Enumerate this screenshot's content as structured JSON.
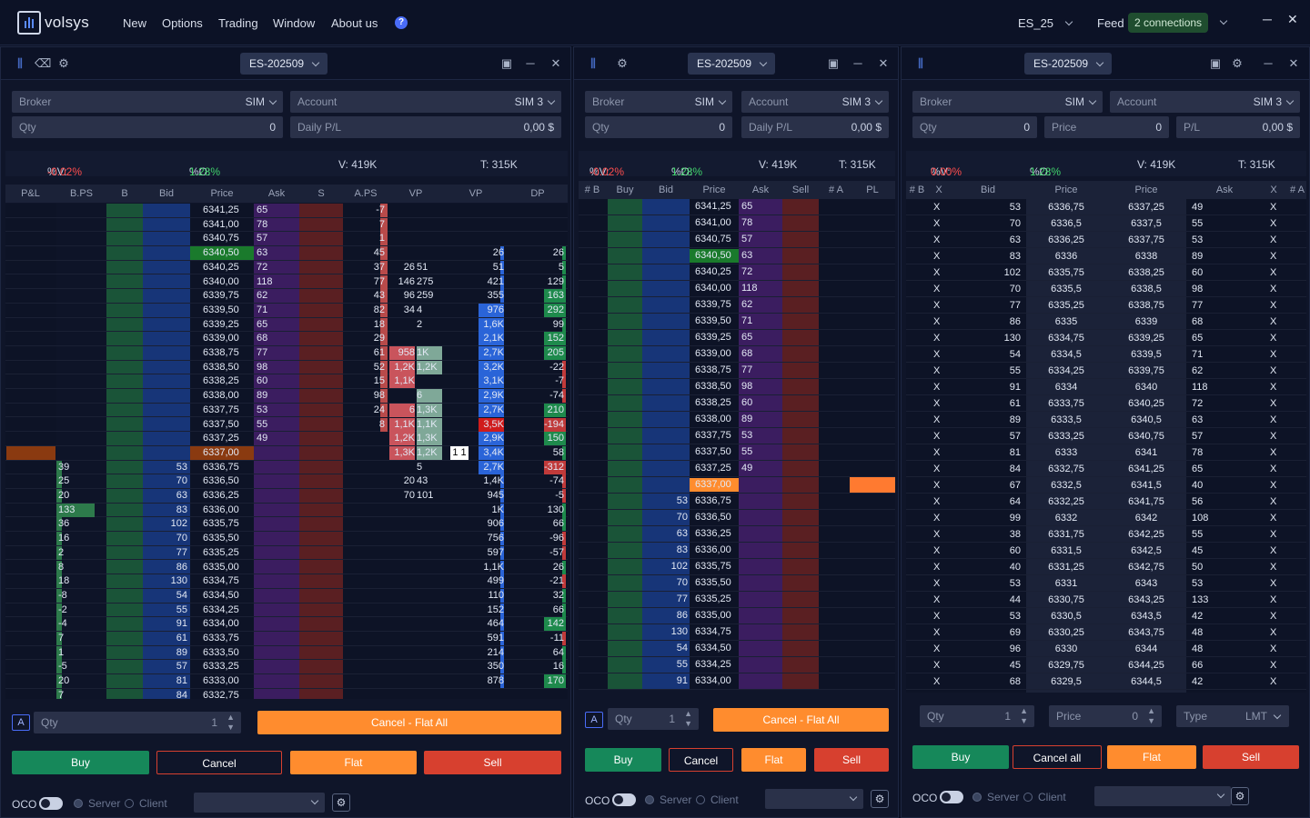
{
  "app": {
    "brand": "volsys",
    "menu": [
      "New",
      "Options",
      "Trading",
      "Window",
      "About us"
    ],
    "account": "ES_25",
    "feed_label": "Feed",
    "connections": "2 connections"
  },
  "colors": {
    "buy": "#16885a",
    "sell": "#d7402f",
    "flat": "#ff8c2e",
    "cancel_border": "#d7402f",
    "bid_col": "#1e3f8a",
    "ask_col": "#3f1f63",
    "pl_pos": "#40d36b",
    "pl_neg": "#ff4d4d"
  },
  "panels": [
    {
      "instrument": "ES-202509",
      "broker_label": "Broker",
      "broker": "SIM",
      "account_label": "Account",
      "account": "SIM 3",
      "qty_label": "Qty",
      "qty": "0",
      "pnl_label": "Daily P/L",
      "pnl": "0,00 $",
      "stats": {
        "v_label": "%V:",
        "v": "-0.02%",
        "o_label": "%O:",
        "o": "1.28%",
        "vol": "V: 419K",
        "trades": "T: 315K"
      },
      "headers": [
        "P&L",
        "B.PS",
        "B",
        "Bid",
        "Price",
        "Ask",
        "S",
        "A.PS",
        "VP",
        "VP",
        "DP"
      ],
      "prices": [
        "6341,25",
        "6341,00",
        "6340,75",
        "6340,50",
        "6340,25",
        "6340,00",
        "6339,75",
        "6339,50",
        "6339,25",
        "6339,00",
        "6338,75",
        "6338,50",
        "6338,25",
        "6338,00",
        "6337,75",
        "6337,50",
        "6337,25",
        "6337,00",
        "6336,75",
        "6336,50",
        "6336,25",
        "6336,00",
        "6335,75",
        "6335,50",
        "6335,25",
        "6335,00",
        "6334,75",
        "6334,50",
        "6334,25",
        "6334,00",
        "6333,75",
        "6333,50",
        "6333,25",
        "6333,00",
        "6332,75"
      ],
      "asks": [
        "65",
        "78",
        "57",
        "63",
        "72",
        "118",
        "62",
        "71",
        "65",
        "68",
        "77",
        "98",
        "60",
        "89",
        "53",
        "55",
        "49"
      ],
      "bids": [
        "53",
        "70",
        "63",
        "83",
        "102",
        "70",
        "77",
        "86",
        "130",
        "54",
        "55",
        "91",
        "61",
        "89",
        "57",
        "81",
        "84"
      ],
      "pnl_vals": [
        "39",
        "25",
        "20",
        "133",
        "36",
        "16",
        "2",
        "8",
        "18",
        "-8",
        "-2",
        "-4",
        "7",
        "1",
        "-5",
        "20",
        "7"
      ],
      "aps": [
        "-7",
        "7",
        "1",
        "45",
        "37",
        "77",
        "43",
        "82",
        "18",
        "29",
        "61",
        "52",
        "15",
        "98",
        "24",
        "8"
      ],
      "vp1": [
        "",
        "",
        "",
        "",
        "26",
        "51",
        "146",
        "275",
        "96",
        "259",
        "34",
        "4",
        "",
        "2",
        "",
        "",
        "958",
        "1K",
        "1,2K",
        "1,2K",
        "1,1K",
        "",
        "",
        "6",
        "6",
        "1,3K",
        "1,1K",
        "1,1K",
        "1,2K",
        "1,3K",
        "1,3K",
        "1,2K",
        "",
        "5",
        "20",
        "43",
        "70",
        "101"
      ],
      "vp2": [
        "",
        "",
        "",
        "26",
        "51",
        "421",
        "355",
        "976",
        "1,6K",
        "2,1K",
        "2,7K",
        "3,2K",
        "3,1K",
        "2,9K",
        "2,7K",
        "3,5K",
        "2,9K",
        "3,4K",
        "2,7K",
        "1,4K",
        "945",
        "1K",
        "906",
        "756",
        "597",
        "1,1K",
        "499",
        "110",
        "152",
        "464",
        "591",
        "214",
        "350",
        "878"
      ],
      "dp": [
        "",
        "",
        "",
        "26",
        "5",
        "129",
        "163",
        "292",
        "99",
        "152",
        "205",
        "-22",
        "-7",
        "-74",
        "210",
        "-194",
        "150",
        "58",
        "-312",
        "-74",
        "-5",
        "130",
        "66",
        "-96",
        "-57",
        "26",
        "-21",
        "32",
        "66",
        "142",
        "-11",
        "64",
        "16",
        "170"
      ],
      "trade_marker": "1 1",
      "order_a": "A",
      "order_qty_label": "Qty",
      "order_qty": "1",
      "cancel_flat": "Cancel - Flat All",
      "buy": "Buy",
      "cancel": "Cancel",
      "flat": "Flat",
      "sell": "Sell",
      "oco": "OCO",
      "server": "Server",
      "client": "Client"
    },
    {
      "instrument": "ES-202509",
      "broker_label": "Broker",
      "broker": "SIM",
      "account_label": "Account",
      "account": "SIM 3",
      "qty_label": "Qty",
      "qty": "0",
      "pnl_label": "Daily P/L",
      "pnl": "0,00 $",
      "stats": {
        "v_label": "%V:",
        "v": "-0.02%",
        "o_label": "%O:",
        "o": "1.28%",
        "vol": "V: 419K",
        "trades": "T: 315K"
      },
      "headers": [
        "# B",
        "Buy",
        "Bid",
        "Price",
        "Ask",
        "Sell",
        "# A",
        "PL"
      ],
      "prices": [
        "6341,25",
        "6341,00",
        "6340,75",
        "6340,50",
        "6340,25",
        "6340,00",
        "6339,75",
        "6339,50",
        "6339,25",
        "6339,00",
        "6338,75",
        "6338,50",
        "6338,25",
        "6338,00",
        "6337,75",
        "6337,50",
        "6337,25",
        "6337,00",
        "6336,75",
        "6336,50",
        "6336,25",
        "6336,00",
        "6335,75",
        "6335,50",
        "6335,25",
        "6335,00",
        "6334,75",
        "6334,50",
        "6334,25",
        "6334,00"
      ],
      "asks": [
        "65",
        "78",
        "57",
        "63",
        "72",
        "118",
        "62",
        "71",
        "65",
        "68",
        "77",
        "98",
        "60",
        "89",
        "53",
        "55",
        "49"
      ],
      "bids": [
        "53",
        "70",
        "63",
        "83",
        "102",
        "70",
        "77",
        "86",
        "130",
        "54",
        "55",
        "91"
      ],
      "order_a": "A",
      "order_qty_label": "Qty",
      "order_qty": "1",
      "cancel_flat": "Cancel - Flat All",
      "buy": "Buy",
      "cancel": "Cancel",
      "flat": "Flat",
      "sell": "Sell",
      "oco": "OCO",
      "server": "Server",
      "client": "Client"
    },
    {
      "instrument": "ES-202509",
      "broker_label": "Broker",
      "broker": "SIM",
      "account_label": "Account",
      "account": "SIM 3",
      "qty_label": "Qty",
      "qty": "0",
      "price_label": "Price",
      "price": "0",
      "pnl_label": "P/L",
      "pnl": "0,00 $",
      "stats": {
        "v_label": "%V:",
        "v": "0.00%",
        "o_label": "%O:",
        "o": "1.28%",
        "vol": "V: 419K",
        "trades": "T: 315K"
      },
      "headers": [
        "# B",
        "X",
        "Bid",
        "Price",
        "Price",
        "Ask",
        "X",
        "# A"
      ],
      "rows": [
        [
          "53",
          "6336,75",
          "6337,25",
          "49"
        ],
        [
          "70",
          "6336,5",
          "6337,5",
          "55"
        ],
        [
          "63",
          "6336,25",
          "6337,75",
          "53"
        ],
        [
          "83",
          "6336",
          "6338",
          "89"
        ],
        [
          "102",
          "6335,75",
          "6338,25",
          "60"
        ],
        [
          "70",
          "6335,5",
          "6338,5",
          "98"
        ],
        [
          "77",
          "6335,25",
          "6338,75",
          "77"
        ],
        [
          "86",
          "6335",
          "6339",
          "68"
        ],
        [
          "130",
          "6334,75",
          "6339,25",
          "65"
        ],
        [
          "54",
          "6334,5",
          "6339,5",
          "71"
        ],
        [
          "55",
          "6334,25",
          "6339,75",
          "62"
        ],
        [
          "91",
          "6334",
          "6340",
          "118"
        ],
        [
          "61",
          "6333,75",
          "6340,25",
          "72"
        ],
        [
          "89",
          "6333,5",
          "6340,5",
          "63"
        ],
        [
          "57",
          "6333,25",
          "6340,75",
          "57"
        ],
        [
          "81",
          "6333",
          "6341",
          "78"
        ],
        [
          "84",
          "6332,75",
          "6341,25",
          "65"
        ],
        [
          "67",
          "6332,5",
          "6341,5",
          "40"
        ],
        [
          "64",
          "6332,25",
          "6341,75",
          "56"
        ],
        [
          "99",
          "6332",
          "6342",
          "108"
        ],
        [
          "38",
          "6331,75",
          "6342,25",
          "55"
        ],
        [
          "60",
          "6331,5",
          "6342,5",
          "45"
        ],
        [
          "40",
          "6331,25",
          "6342,75",
          "50"
        ],
        [
          "53",
          "6331",
          "6343",
          "53"
        ],
        [
          "44",
          "6330,75",
          "6343,25",
          "133"
        ],
        [
          "53",
          "6330,5",
          "6343,5",
          "42"
        ],
        [
          "69",
          "6330,25",
          "6343,75",
          "48"
        ],
        [
          "96",
          "6330",
          "6344",
          "48"
        ],
        [
          "45",
          "6329,75",
          "6344,25",
          "66"
        ],
        [
          "68",
          "6329,5",
          "6344,5",
          "42"
        ]
      ],
      "x": "X",
      "order_qty_label": "Qty",
      "order_qty": "1",
      "order_price_label": "Price",
      "order_price": "0",
      "order_type_label": "Type",
      "order_type": "LMT",
      "buy": "Buy",
      "cancel": "Cancel all",
      "flat": "Flat",
      "sell": "Sell",
      "oco": "OCO",
      "server": "Server",
      "client": "Client"
    }
  ]
}
